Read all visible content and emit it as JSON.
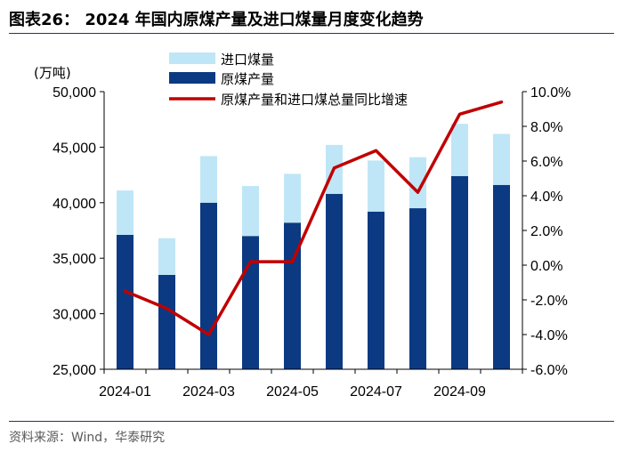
{
  "header": {
    "title": "图表26：  2024 年国内原煤产量及进口煤量月度变化趋势"
  },
  "footer": {
    "source": "资料来源：Wind，华泰研究"
  },
  "chart_data": {
    "type": "bar",
    "stacked": true,
    "unit_label": "(万吨)",
    "categories": [
      "2024-01",
      "2024-02",
      "2024-03",
      "2024-04",
      "2024-05",
      "2024-06",
      "2024-07",
      "2024-08",
      "2024-09",
      "2024-10"
    ],
    "x_tick_labels": [
      "2024-01",
      "2024-03",
      "2024-05",
      "2024-07",
      "2024-09"
    ],
    "y_left": {
      "min": 25000,
      "max": 50000,
      "step": 5000,
      "tick_labels": [
        "25,000",
        "30,000",
        "35,000",
        "40,000",
        "45,000",
        "50,000"
      ]
    },
    "y_right": {
      "min": -6.0,
      "max": 10.0,
      "step": 2.0,
      "tick_labels": [
        "-6.0%",
        "-4.0%",
        "-2.0%",
        "0.0%",
        "2.0%",
        "4.0%",
        "6.0%",
        "8.0%",
        "10.0%"
      ]
    },
    "series": [
      {
        "name": "原煤产量",
        "kind": "bar",
        "color": "#0b3a82",
        "values": [
          37100,
          33500,
          40000,
          37000,
          38200,
          40800,
          39200,
          39500,
          42400,
          41600
        ]
      },
      {
        "name": "进口煤量",
        "kind": "bar-stacked",
        "color": "#bfe6f7",
        "values": [
          4000,
          3300,
          4200,
          4500,
          4400,
          4400,
          4600,
          4600,
          4700,
          4600
        ]
      },
      {
        "name": "原煤产量和进口煤总量同比增速",
        "kind": "line",
        "axis": "right",
        "color": "#c00000",
        "values": [
          -1.5,
          -2.5,
          -4.0,
          0.2,
          0.2,
          5.6,
          6.6,
          4.2,
          8.7,
          9.4
        ]
      }
    ],
    "legend": {
      "placement": "top-right",
      "order": [
        "进口煤量",
        "原煤产量",
        "原煤产量和进口煤总量同比增速"
      ]
    },
    "grid": false
  }
}
